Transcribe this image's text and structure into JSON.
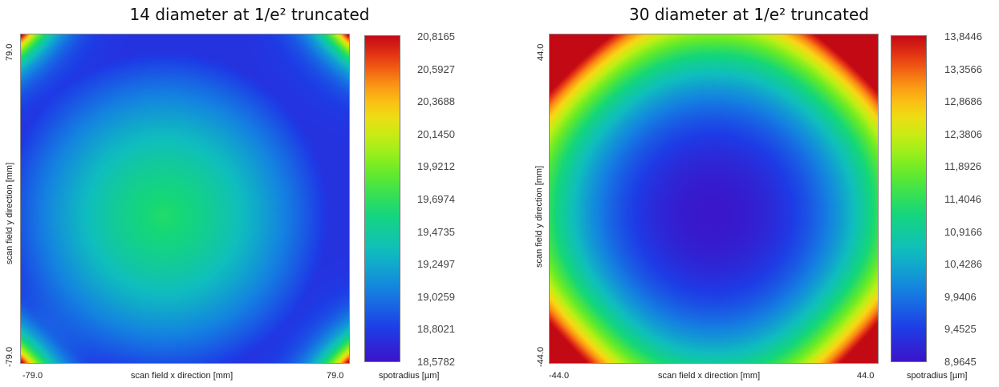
{
  "chart_data": [
    {
      "type": "heatmap",
      "title": "14 diameter at 1/e² truncated",
      "xlabel": "scan field x direction [mm]",
      "ylabel": "scan field y direction [mm]",
      "x_ticks": [
        "-79.0",
        "79.0"
      ],
      "y_ticks": [
        "79.0",
        "-79.0"
      ],
      "xlim": [
        -79.0,
        79.0
      ],
      "ylim": [
        -79.0,
        79.0
      ],
      "colorbar": {
        "label": "spotradius [µm]",
        "ticks": [
          "20,8165",
          "20,5927",
          "20,3688",
          "20,1450",
          "19,9212",
          "19,6974",
          "19,4735",
          "19,2497",
          "19,0259",
          "18,8021",
          "18,5782"
        ],
        "min": 18.5782,
        "max": 20.8165,
        "colormap": "rainbow"
      },
      "field": {
        "description_values": {
          "center_value": 19.65,
          "center_offset_x_mm": -10,
          "center_offset_y_mm": -8,
          "edge_mid_value": 18.75,
          "corner_value": 20.8
        }
      }
    },
    {
      "type": "heatmap",
      "title": "30 diameter at 1/e² truncated",
      "xlabel": "scan field x direction [mm]",
      "ylabel": "scan field y direction [mm]",
      "x_ticks": [
        "-44.0",
        "44.0"
      ],
      "y_ticks": [
        "44.0",
        "-44.0"
      ],
      "xlim": [
        -44.0,
        44.0
      ],
      "ylim": [
        -44.0,
        44.0
      ],
      "colorbar": {
        "label": "spotradius [µm]",
        "ticks": [
          "13,8446",
          "13,3566",
          "12,8686",
          "12,3806",
          "11,8926",
          "11,4046",
          "10,9166",
          "10,4286",
          "9,9406",
          "9,4525",
          "8,9645"
        ],
        "min": 8.9645,
        "max": 13.8446,
        "colormap": "rainbow"
      },
      "field": {
        "description_values": {
          "center_value": 9.0,
          "center_offset_x_mm": 0,
          "center_offset_y_mm": -4,
          "edge_mid_value": 11.4,
          "corner_value": 13.8
        }
      }
    }
  ]
}
